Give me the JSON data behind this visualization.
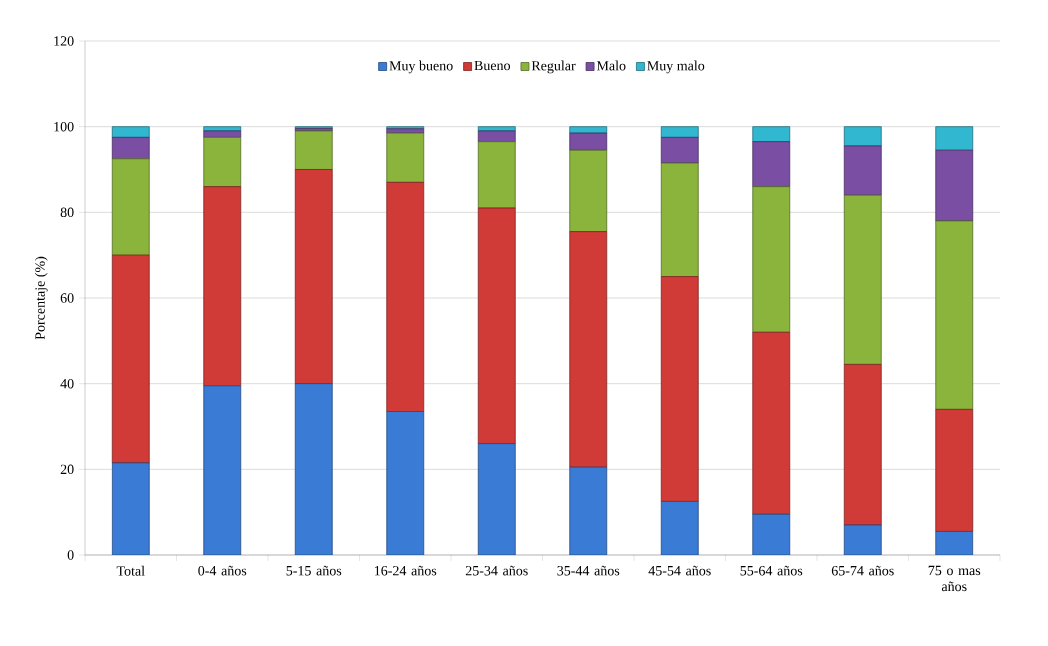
{
  "chart_data": {
    "type": "bar",
    "stacked": true,
    "ylabel": "Porcentaje (%)",
    "categories": [
      "Total",
      "0-4 años",
      "5-15 años",
      "16-24 años",
      "25-34 años",
      "35-44 años",
      "45-54 años",
      "55-64 años",
      "65-74 años",
      "75 o mas años"
    ],
    "series": [
      {
        "name": "Muy bueno",
        "color": "#3a7bd5",
        "values": [
          21.5,
          39.5,
          40,
          33.5,
          26,
          20.5,
          12.5,
          9.5,
          7,
          5.5
        ]
      },
      {
        "name": "Bueno",
        "color": "#d03a37",
        "values": [
          48.5,
          46.5,
          50,
          53.5,
          55,
          55,
          52.5,
          42.5,
          37.5,
          28.5
        ]
      },
      {
        "name": "Regular",
        "color": "#8ab43c",
        "values": [
          22.5,
          11.5,
          9,
          11.5,
          15.5,
          19,
          26.5,
          34,
          39.5,
          44
        ]
      },
      {
        "name": "Malo",
        "color": "#7a4ea3",
        "values": [
          5,
          1.5,
          0.6,
          1,
          2.5,
          4,
          6,
          10.5,
          11.5,
          16.5
        ]
      },
      {
        "name": "Muy malo",
        "color": "#31b7d0",
        "values": [
          2.5,
          1,
          0.4,
          0.5,
          1,
          1.5,
          2.5,
          3.5,
          4.5,
          5.5
        ]
      }
    ],
    "ylim": [
      0,
      120
    ],
    "yticks": [
      0,
      20,
      40,
      60,
      80,
      100,
      120
    ],
    "grid": "y",
    "legend": "top"
  }
}
